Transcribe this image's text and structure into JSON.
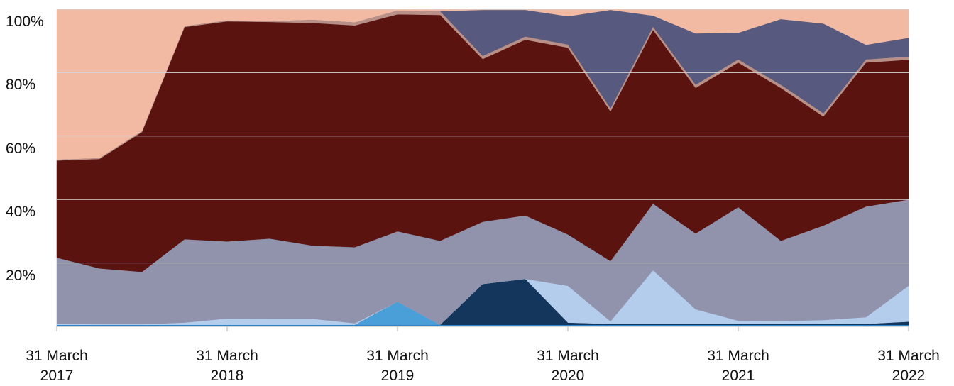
{
  "chart_data": {
    "type": "stacked_area",
    "categories": [
      "31 March 2017",
      null,
      null,
      null,
      "31 March 2018",
      null,
      null,
      null,
      "31 March 2019",
      null,
      null,
      null,
      "31 March 2020",
      null,
      null,
      null,
      "31 March 2021",
      null,
      null,
      null,
      "31 March 2022"
    ],
    "series": [
      {
        "color": "#2e86c8",
        "values": [
          0.5,
          0.5,
          0.5,
          0.5,
          0.5,
          0.5,
          0.5,
          0.5,
          0.5,
          0.5,
          0.5,
          0.5,
          0.5,
          0.5,
          0.5,
          0.5,
          0.5,
          0.5,
          0.5,
          0.5,
          0.5
        ]
      },
      {
        "color": "#4a9fd8",
        "values": [
          0,
          0,
          0,
          0,
          0,
          0,
          0,
          0,
          7.3,
          0,
          0,
          0,
          0,
          0,
          0,
          0,
          0,
          0,
          0,
          0,
          0
        ]
      },
      {
        "color": "#14365c",
        "values": [
          0,
          0,
          0,
          0,
          0,
          0,
          0,
          0,
          0,
          0,
          12.9,
          14.5,
          0.7,
          0.3,
          0.3,
          0.3,
          0.3,
          0.3,
          0.3,
          0.3,
          1.0
        ]
      },
      {
        "color": "#b4cdec",
        "values": [
          0.3,
          0.2,
          0.2,
          0.7,
          2,
          1.9,
          1.9,
          0.5,
          0,
          0,
          0,
          0,
          11.6,
          0.8,
          16.9,
          4.6,
          1,
          0.9,
          1.2,
          2.1,
          11.3
        ]
      },
      {
        "color": "#9093ab",
        "values": [
          20.9,
          17.6,
          16.5,
          26.3,
          24.3,
          25.3,
          23.1,
          24,
          22.2,
          26.5,
          19.6,
          20,
          16.2,
          19,
          21,
          23.9,
          35.8,
          25.3,
          29.8,
          34.9,
          27.2
        ]
      },
      {
        "color": "#5a130f",
        "values": [
          30.6,
          34.5,
          44.1,
          66.9,
          69.4,
          68.3,
          70.2,
          69.9,
          68.4,
          71.2,
          51.3,
          55.4,
          58.9,
          47.2,
          54.8,
          45.9,
          45.6,
          48.2,
          34.4,
          45.4,
          44.1
        ]
      },
      {
        "color": "#b89088",
        "values": [
          0.3,
          0.3,
          0.3,
          0.3,
          0.3,
          0.3,
          1,
          1,
          1.2,
          1.2,
          1,
          1,
          1,
          1,
          1,
          1,
          1,
          1,
          1,
          1,
          1
        ]
      },
      {
        "color": "#575a7e",
        "values": [
          0,
          0,
          0,
          0,
          0,
          0,
          0,
          0,
          0,
          0,
          14.5,
          8.4,
          8.9,
          31,
          3.5,
          16.2,
          8.4,
          20.7,
          28.3,
          4.6,
          5.9
        ]
      },
      {
        "color": "#f2baa2",
        "values": [
          47.4,
          46.9,
          38.4,
          5.3,
          3.5,
          3.7,
          3.3,
          4.1,
          0.4,
          0.6,
          0.2,
          0.2,
          2.2,
          0.2,
          2,
          7.6,
          7.4,
          3.1,
          4.5,
          11.2,
          9
        ]
      }
    ],
    "ylim": [
      0,
      100
    ],
    "yticks": [
      {
        "value": 20,
        "label": "20%"
      },
      {
        "value": 40,
        "label": "40%"
      },
      {
        "value": 60,
        "label": "60%"
      },
      {
        "value": 80,
        "label": "80%"
      },
      {
        "value": 100,
        "label": "100%"
      }
    ],
    "grid": true
  }
}
